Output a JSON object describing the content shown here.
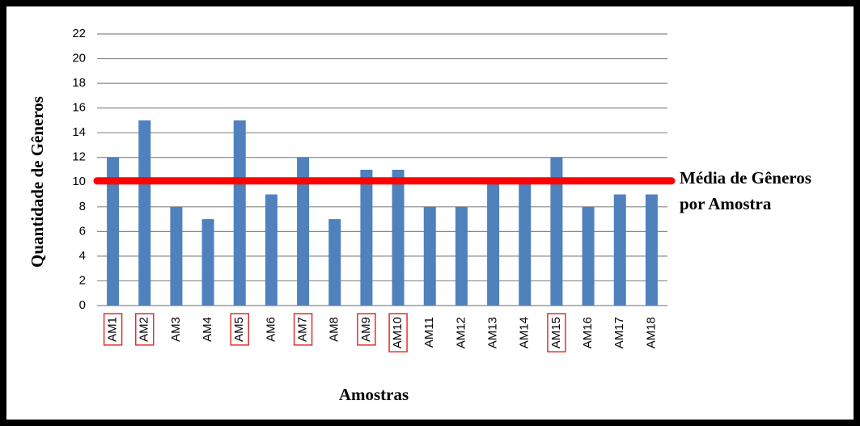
{
  "chart_data": {
    "type": "bar",
    "x_label": "Amostras",
    "y_label": "Quantidade  de Gêneros",
    "categories": [
      "AM1",
      "AM2",
      "AM3",
      "AM4",
      "AM5",
      "AM6",
      "AM7",
      "AM8",
      "AM9",
      "AM10",
      "AM11",
      "AM12",
      "AM13",
      "AM14",
      "AM15",
      "AM16",
      "AM17",
      "AM18"
    ],
    "values": [
      12,
      15,
      8,
      7,
      15,
      9,
      12,
      7,
      11,
      11,
      8,
      8,
      10,
      10,
      12,
      8,
      9,
      9
    ],
    "color": "#4f81bd",
    "highlighted": [
      0,
      1,
      4,
      6,
      8,
      9,
      14
    ],
    "highlight_color": "#e03030",
    "mean_line": {
      "value": 10.1,
      "color": "#ff0000",
      "label": [
        "Média de Gêneros",
        "por Amostra"
      ]
    },
    "ylim": [
      0,
      22
    ],
    "yticks": [
      0,
      2,
      4,
      6,
      8,
      10,
      12,
      14,
      16,
      18,
      20,
      22
    ],
    "grid": true
  }
}
